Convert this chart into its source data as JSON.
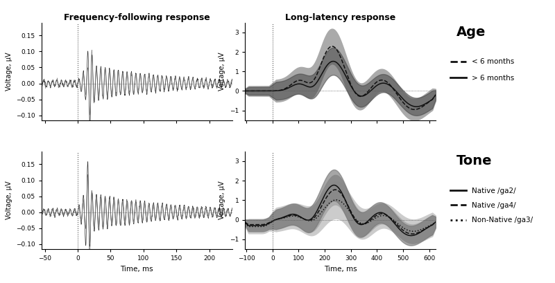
{
  "ffr_title": "Frequency-following response",
  "llr_title": "Long-latency response",
  "ffr_xlim": [
    -55,
    235
  ],
  "ffr_ylim": [
    -0.115,
    0.19
  ],
  "llr_xlim": [
    -105,
    625
  ],
  "llr_ylim": [
    -1.5,
    3.5
  ],
  "ffr_yticks": [
    -0.1,
    -0.05,
    0,
    0.05,
    0.1,
    0.15
  ],
  "llr_yticks": [
    -1,
    0,
    1,
    2,
    3
  ],
  "ffr_xticks": [
    -50,
    0,
    50,
    100,
    150,
    200
  ],
  "llr_xticks": [
    -100,
    0,
    100,
    200,
    300,
    400,
    500,
    600
  ],
  "xlabel": "Time, ms",
  "ylabel": "Voltage, μV",
  "color_dark": "#1a1a1a",
  "color_mid": "#555555",
  "color_light": "#999999",
  "color_lighter": "#bbbbbb",
  "color_band_dark": "#555555",
  "color_band_mid": "#888888",
  "color_band_light": "#bbbbbb",
  "bg_color": "#ffffff",
  "legend_age_title": "Age",
  "legend_tone_title": "Tone",
  "age_labels": [
    "< 6 months",
    "> 6 months"
  ],
  "tone_labels": [
    "Native /ga2/",
    "Native /ga4/",
    "Non-Native /ga3/"
  ]
}
